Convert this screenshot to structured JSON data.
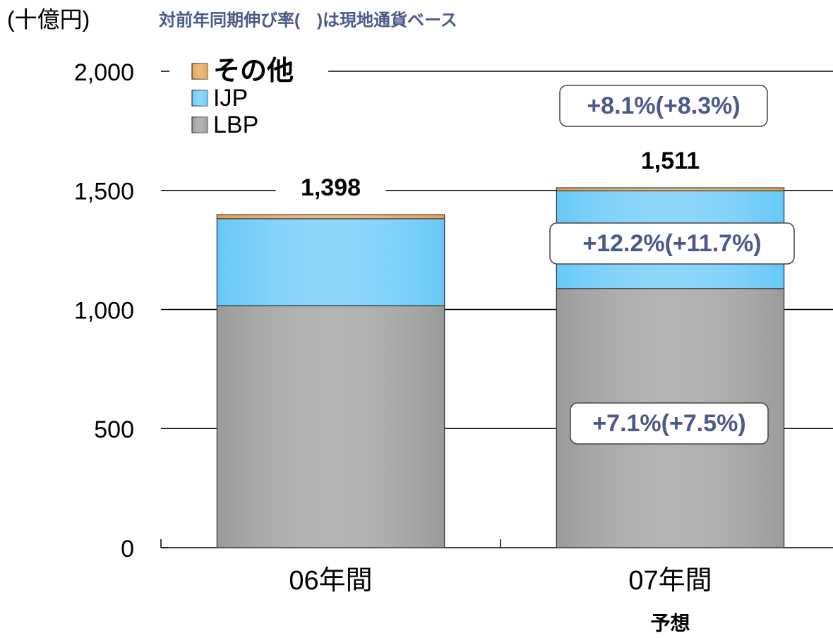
{
  "chart_data": {
    "type": "stacked_bar",
    "y_axis_label": "(十億円)",
    "subtitle": "対前年同期伸び率(　)は現地通貨ベース",
    "categories": [
      "06年間",
      "07年間"
    ],
    "category_notes": [
      null,
      "予想"
    ],
    "series": [
      {
        "name": "LBP",
        "color": "#9a9a9a",
        "values": [
          1016,
          1088
        ]
      },
      {
        "name": "IJP",
        "color": "#66c8f8",
        "values": [
          365,
          410
        ]
      },
      {
        "name": "その他",
        "color": "#e8a050",
        "values": [
          17,
          13
        ]
      }
    ],
    "totals": [
      1398,
      1511
    ],
    "total_labels": [
      "1,398",
      "1,511"
    ],
    "annotations": [
      "+8.1%(+8.3%)",
      "+12.2%(+11.7%)",
      "+7.1%(+7.5%)"
    ],
    "ylim": [
      0,
      2000
    ],
    "yticks": [
      0,
      500,
      {
        "value": 1000,
        "label": "1,000"
      },
      {
        "value": 1500,
        "label": "1,500"
      },
      {
        "value": 2000,
        "label": "2,000"
      }
    ],
    "grid": true,
    "legend": "top-left"
  }
}
